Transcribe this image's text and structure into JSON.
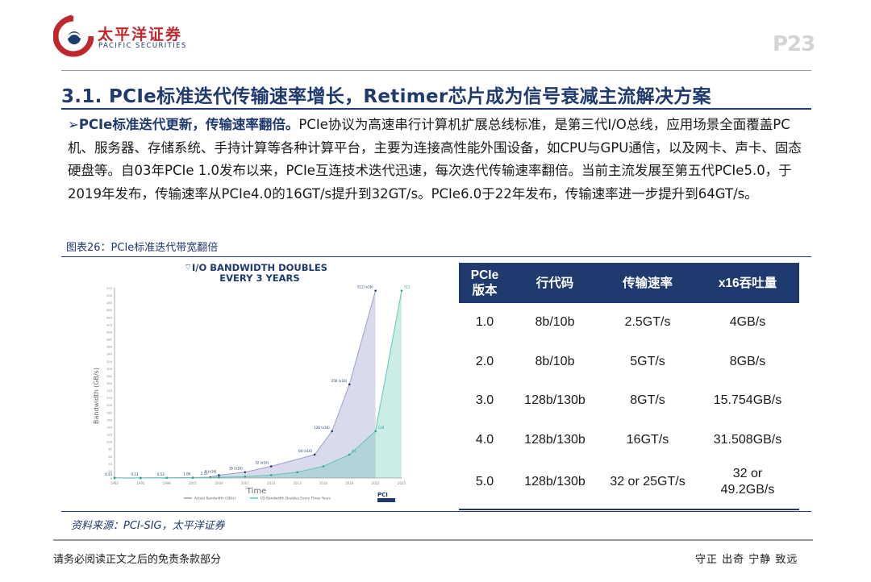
{
  "header": {
    "brand_cn": "太平洋证券",
    "brand_en": "PACIFIC SECURITIES",
    "page_number": "P23",
    "colors": {
      "brand_red": "#c0272d",
      "brand_navy": "#1f3a6e"
    }
  },
  "section_title": "3.1. PCIe标准迭代传输速率增长，Retimer芯片成为信号衰减主流解决方案",
  "paragraph": {
    "bullet": "➢",
    "lead": "PCIe标准迭代更新，传输速率翻倍。",
    "body": "PCIe协议为高速串行计算机扩展总线标准，是第三代I/O总线，应用场景全面覆盖PC机、服务器、存储系统、手持计算等各种计算平台，主要为连接高性能外围设备，如CPU与GPU通信，以及网卡、声卡、固态硬盘等。自03年PCIe 1.0发布以来，PCIe互连技术迭代迅速，每次迭代传输速率翻倍。当前主流发展至第五代PCIe5.0，于2019年发布，传输速率从PCIe4.0的16GT/s提升到32GT/s。PCIe6.0于22年发布，传输速率进一步提升到64GT/s。"
  },
  "figure_caption": "图表26：PCIe标准迭代带宽翻倍",
  "chart_data": {
    "type": "area",
    "title": "I/O BANDWIDTH DOUBLES",
    "subtitle": "EVERY 3 YEARS",
    "xlabel": "Time",
    "ylabel": "Bandwidth (GB/s)",
    "ylim": [
      0,
      520
    ],
    "grid": false,
    "legend_position": "bottom",
    "x": [
      1992,
      1995,
      1998,
      2001,
      2004,
      2007,
      2010,
      2013,
      2016,
      2019,
      2022,
      2025
    ],
    "series": [
      {
        "name": "Actual Bandwidth (GB/s)",
        "color": "#9aa0cc",
        "points": [
          [
            1992,
            0.13
          ],
          [
            1995,
            0.13
          ],
          [
            1998,
            0.53
          ],
          [
            2001,
            1.06
          ],
          [
            2003,
            2.13
          ],
          [
            2004,
            8
          ],
          [
            2007,
            16
          ],
          [
            2010,
            32
          ],
          [
            2015,
            64
          ],
          [
            2017,
            128
          ],
          [
            2019,
            256
          ],
          [
            2022,
            512
          ]
        ],
        "labels": [
          "0.13",
          "0.13",
          "0.53",
          "1.06",
          "2.13",
          "8 (x16)",
          "16 (x16)",
          "32 (x16)",
          "64 (x16)",
          "128 (x16)",
          "256 (x16)",
          "512 (x16)"
        ]
      },
      {
        "name": "I/O Bandwidth Doubles Every Three Years",
        "color": "#5fc8b0",
        "points": [
          [
            1992,
            0.13
          ],
          [
            1995,
            0.25
          ],
          [
            1998,
            0.5
          ],
          [
            2001,
            1
          ],
          [
            2004,
            2
          ],
          [
            2007,
            4
          ],
          [
            2010,
            8
          ],
          [
            2013,
            16
          ],
          [
            2016,
            32
          ],
          [
            2019,
            64
          ],
          [
            2022,
            128
          ],
          [
            2025,
            512
          ]
        ],
        "labels": [
          "",
          "",
          "",
          "",
          "",
          "",
          "",
          "",
          "",
          "64",
          "128",
          "512"
        ]
      }
    ]
  },
  "table": {
    "headers": [
      "PCIe\n版本",
      "行代码",
      "传输速率",
      "x16吞吐量"
    ],
    "rows": [
      [
        "1.0",
        "8b/10b",
        "2.5GT/s",
        "4GB/s"
      ],
      [
        "2.0",
        "8b/10b",
        "5GT/s",
        "8GB/s"
      ],
      [
        "3.0",
        "128b/130b",
        "8GT/s",
        "15.754GB/s"
      ],
      [
        "4.0",
        "128b/130b",
        "16GT/s",
        "31.508GB/s"
      ],
      [
        "5.0",
        "128b/130b",
        "32 or 25GT/s",
        "32 or\n49.2GB/s"
      ]
    ]
  },
  "source": "资料来源：PCI-SIG，太平洋证券",
  "footer": {
    "left": "请务必阅读正文之后的免责条款部分",
    "right": "守正 出奇 宁静 致远"
  }
}
